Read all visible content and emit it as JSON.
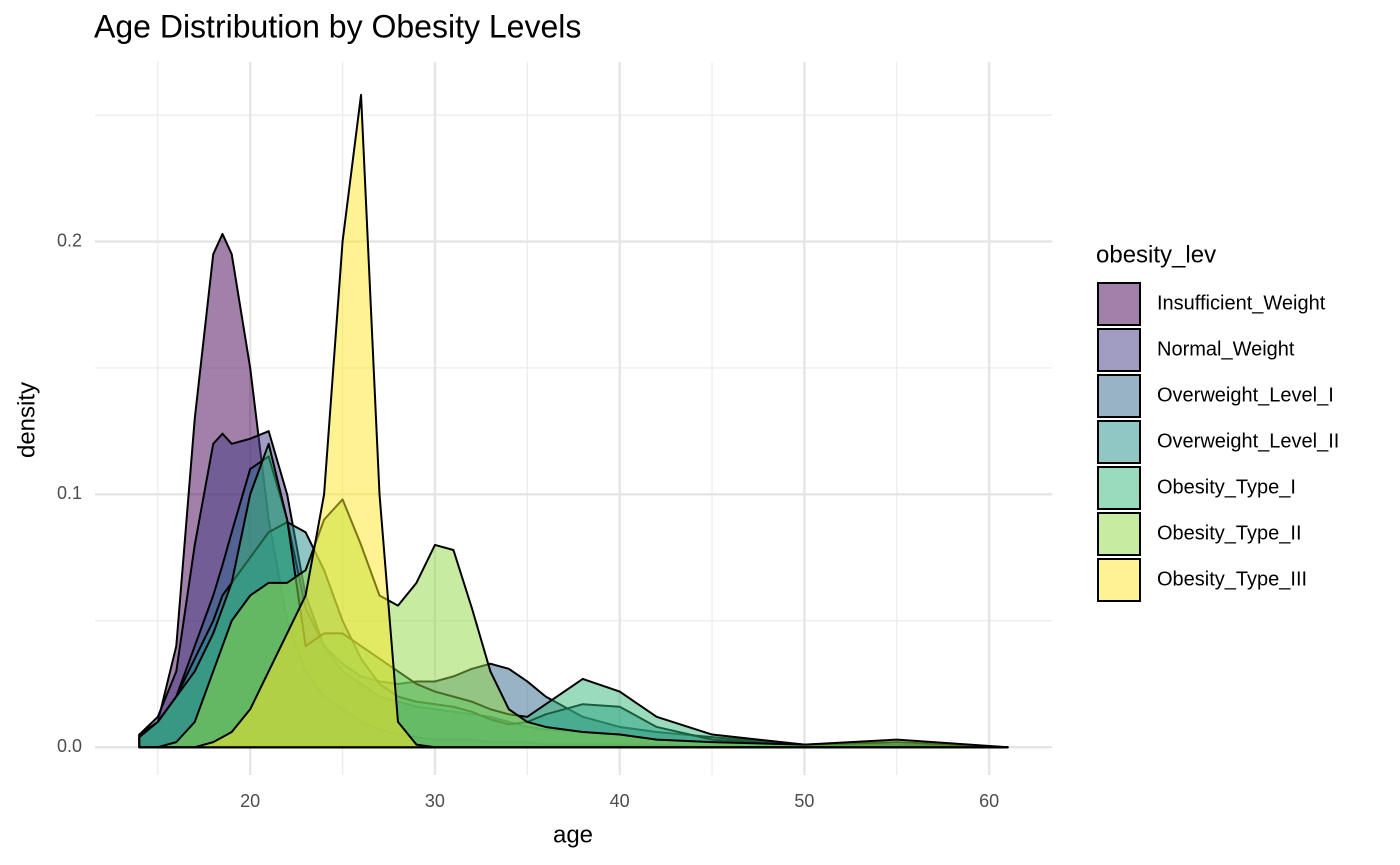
{
  "chart_data": {
    "type": "density",
    "title": "Age Distribution by Obesity Levels",
    "x_label": "age",
    "y_label": "density",
    "legend_title": "obesity_lev",
    "x": [
      14,
      15,
      16,
      17,
      18,
      18.5,
      19,
      20,
      21,
      22,
      23,
      24,
      25,
      26,
      27,
      28,
      29,
      30,
      31,
      32,
      33,
      34,
      35,
      36,
      38,
      40,
      42,
      45,
      50,
      55,
      61
    ],
    "series": [
      {
        "name": "Insufficient_Weight",
        "color": "#440154",
        "values": [
          0.005,
          0.01,
          0.04,
          0.13,
          0.195,
          0.203,
          0.195,
          0.15,
          0.09,
          0.05,
          0.03,
          0.02,
          0.015,
          0.01,
          0.007,
          0.005,
          0.004,
          0.003,
          0.003,
          0.003,
          0.002,
          0.002,
          0.002,
          0.001,
          0.001,
          0.001,
          0.001,
          0,
          0,
          0,
          0
        ]
      },
      {
        "name": "Normal_Weight",
        "color": "#443a83",
        "values": [
          0.005,
          0.012,
          0.03,
          0.08,
          0.12,
          0.124,
          0.12,
          0.122,
          0.125,
          0.1,
          0.06,
          0.04,
          0.03,
          0.025,
          0.02,
          0.018,
          0.016,
          0.015,
          0.014,
          0.013,
          0.012,
          0.01,
          0.008,
          0.007,
          0.006,
          0.005,
          0.003,
          0.002,
          0.001,
          0.001,
          0
        ]
      },
      {
        "name": "Overweight_Level_I",
        "color": "#31688e",
        "values": [
          0.004,
          0.01,
          0.02,
          0.04,
          0.06,
          0.072,
          0.085,
          0.11,
          0.115,
          0.09,
          0.055,
          0.04,
          0.033,
          0.028,
          0.026,
          0.025,
          0.026,
          0.026,
          0.028,
          0.031,
          0.033,
          0.031,
          0.026,
          0.02,
          0.012,
          0.008,
          0.006,
          0.004,
          0.001,
          0.001,
          0
        ]
      },
      {
        "name": "Overweight_Level_II",
        "color": "#21908c",
        "values": [
          0.005,
          0.01,
          0.02,
          0.035,
          0.05,
          0.06,
          0.065,
          0.075,
          0.085,
          0.089,
          0.085,
          0.07,
          0.05,
          0.035,
          0.025,
          0.02,
          0.018,
          0.017,
          0.016,
          0.014,
          0.011,
          0.009,
          0.01,
          0.013,
          0.017,
          0.016,
          0.008,
          0.003,
          0.001,
          0.001,
          0
        ]
      },
      {
        "name": "Obesity_Type_I",
        "color": "#35b779",
        "values": [
          0.004,
          0.01,
          0.02,
          0.03,
          0.045,
          0.055,
          0.065,
          0.1,
          0.12,
          0.09,
          0.04,
          0.045,
          0.045,
          0.04,
          0.035,
          0.03,
          0.025,
          0.022,
          0.02,
          0.018,
          0.015,
          0.013,
          0.012,
          0.017,
          0.027,
          0.022,
          0.012,
          0.005,
          0.001,
          0.002,
          0
        ]
      },
      {
        "name": "Obesity_Type_II",
        "color": "#8fd744",
        "values": [
          0,
          0,
          0.002,
          0.01,
          0.03,
          0.04,
          0.05,
          0.06,
          0.065,
          0.065,
          0.07,
          0.09,
          0.098,
          0.08,
          0.06,
          0.056,
          0.065,
          0.08,
          0.078,
          0.055,
          0.03,
          0.015,
          0.01,
          0.008,
          0.006,
          0.005,
          0.003,
          0.002,
          0.001,
          0.003,
          0
        ]
      },
      {
        "name": "Obesity_Type_III",
        "color": "#fde725",
        "values": [
          0,
          0,
          0,
          0,
          0.002,
          0.004,
          0.006,
          0.015,
          0.03,
          0.045,
          0.06,
          0.1,
          0.2,
          0.258,
          0.1,
          0.01,
          0.001,
          0,
          0,
          0,
          0,
          0,
          0,
          0,
          0,
          0,
          0,
          0,
          0,
          0,
          0
        ]
      }
    ],
    "fill_opacity": 0.5,
    "xlim": [
      11.6,
      63.4
    ],
    "ylim": [
      -0.011,
      0.271
    ],
    "xticks": [
      20,
      30,
      40,
      50,
      60
    ],
    "yticks": [
      {
        "value": 0,
        "label": "0.0"
      },
      0.1,
      0.2
    ],
    "x_minor_grid": [
      15,
      25,
      35,
      45,
      55
    ],
    "y_minor_grid": [
      0.05,
      0.15,
      0.25
    ],
    "grid": true
  }
}
